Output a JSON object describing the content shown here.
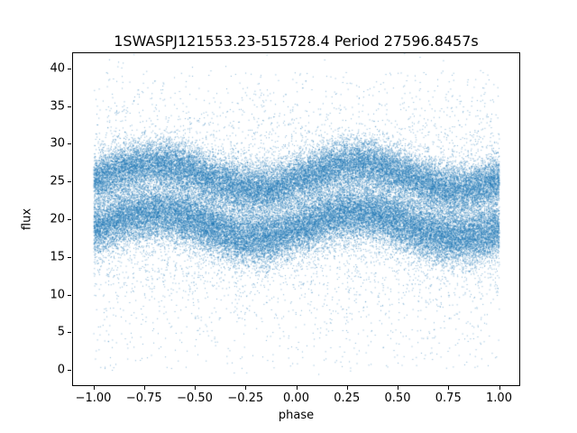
{
  "chart_data": {
    "type": "scatter",
    "title": "1SWASPJ121553.23-515728.4 Period 27596.8457s",
    "xlabel": "phase",
    "ylabel": "flux",
    "xlim": [
      -1.1,
      1.1
    ],
    "ylim": [
      -2,
      42
    ],
    "x_ticks": [
      -1.0,
      -0.75,
      -0.5,
      -0.25,
      0.0,
      0.25,
      0.5,
      0.75,
      1.0
    ],
    "x_tick_labels": [
      "−1.00",
      "−0.75",
      "−0.50",
      "−0.25",
      "0.00",
      "0.25",
      "0.50",
      "0.75",
      "1.00"
    ],
    "y_ticks": [
      0,
      5,
      10,
      15,
      20,
      25,
      30,
      35,
      40
    ],
    "y_tick_labels": [
      "0",
      "5",
      "10",
      "15",
      "20",
      "25",
      "30",
      "35",
      "40"
    ],
    "grid": false,
    "legend": "none",
    "point_color": "#1f77b4",
    "point_alpha": 0.55,
    "marker_size_px": 1,
    "model": {
      "description": "Phase-folded light curve: dense noisy scatter forming two sinusoidal bands (period 1.0 in phase, shown over two cycles from -1 to 1) plus diffuse background scatter spanning flux 0-40",
      "phase_range": [
        -1,
        1
      ],
      "sinusoid_period_phase": 1.0,
      "bands": [
        {
          "name": "upper-band",
          "mean_flux": 25.7,
          "amplitude": 1.7,
          "phase_of_max": 0.3,
          "sigma": 1.6,
          "n_points": 26000
        },
        {
          "name": "lower-band",
          "mean_flux": 19.3,
          "amplitude": 1.7,
          "phase_of_max": 0.3,
          "sigma": 1.8,
          "n_points": 30000
        }
      ],
      "background": {
        "mean_flux": 22,
        "sigma": 6.5,
        "n_points": 7000
      },
      "outliers": {
        "flux_min": 0.2,
        "flux_max": 39.5,
        "n_points": 1300
      },
      "seed": 42
    }
  }
}
